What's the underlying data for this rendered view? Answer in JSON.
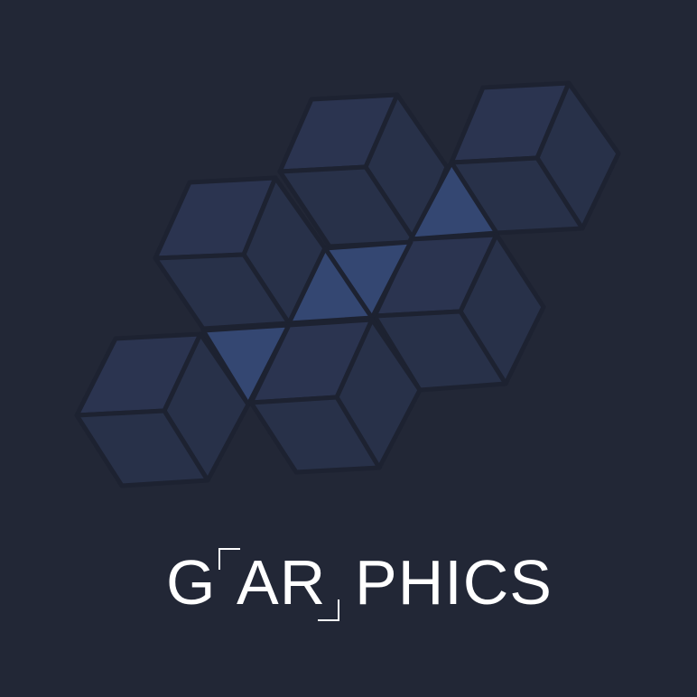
{
  "brand": {
    "wordmark_parts": [
      "G",
      "AR",
      "PHICS"
    ],
    "colors": {
      "background": "#222736",
      "cube_face": "#2B3450",
      "cube_face_dark": "#273049",
      "highlight_triangle": "#344772",
      "edge": "#1D2231",
      "text": "#FFFFFF"
    }
  }
}
